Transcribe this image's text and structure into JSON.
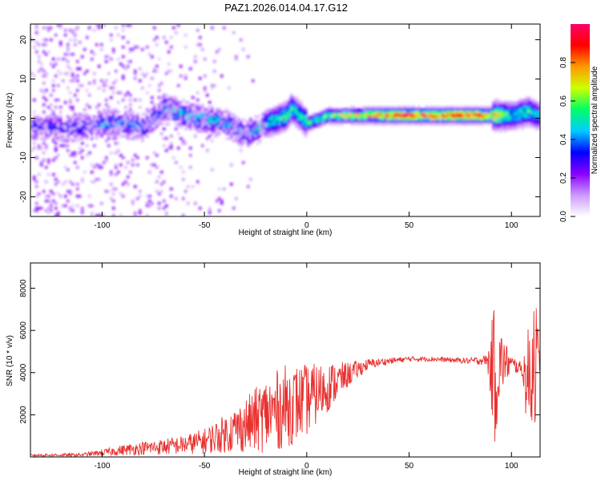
{
  "title": "PAZ1.2026.014.04.17.G12",
  "chart_data": [
    {
      "type": "heatmap",
      "xlabel": "Height of straight line (km)",
      "ylabel": "Frequency (Hz)",
      "xlim": [
        -135,
        114
      ],
      "ylim": [
        -25,
        24
      ],
      "xticks": [
        -100,
        -50,
        0,
        50,
        100
      ],
      "yticks": [
        -20,
        -10,
        0,
        10,
        20
      ],
      "colorbar": {
        "label": "Normalized spectral amplitude",
        "range": [
          0,
          1
        ],
        "ticks": [
          "0.0",
          "0.2",
          "0.4",
          "0.6",
          "0.8"
        ],
        "colors": [
          "#ffffff",
          "#cc99ff",
          "#8800ff",
          "#0000ff",
          "#00ccff",
          "#00ff66",
          "#ccff00",
          "#ff9900",
          "#ff0000",
          "#ff0066"
        ]
      },
      "ridge": [
        {
          "x": -110,
          "y": -2,
          "a": 0.3
        },
        {
          "x": -100,
          "y": -1,
          "a": 0.4
        },
        {
          "x": -90,
          "y": -1,
          "a": 0.4
        },
        {
          "x": -80,
          "y": -2,
          "a": 0.35
        },
        {
          "x": -70,
          "y": 3,
          "a": 0.45
        },
        {
          "x": -60,
          "y": 1,
          "a": 0.45
        },
        {
          "x": -50,
          "y": 0,
          "a": 0.45
        },
        {
          "x": -40,
          "y": -1,
          "a": 0.4
        },
        {
          "x": -30,
          "y": -4,
          "a": 0.4
        },
        {
          "x": -20,
          "y": -1,
          "a": 0.45
        },
        {
          "x": -10,
          "y": 1,
          "a": 0.55
        },
        {
          "x": -8,
          "y": 3,
          "a": 0.5
        },
        {
          "x": 0,
          "y": -1,
          "a": 0.5
        },
        {
          "x": 10,
          "y": 1,
          "a": 0.6
        },
        {
          "x": 20,
          "y": 1,
          "a": 0.65
        },
        {
          "x": 30,
          "y": 1,
          "a": 0.75
        },
        {
          "x": 40,
          "y": 1,
          "a": 0.8
        },
        {
          "x": 50,
          "y": 1,
          "a": 0.85
        },
        {
          "x": 60,
          "y": 1,
          "a": 0.85
        },
        {
          "x": 70,
          "y": 1,
          "a": 0.85
        },
        {
          "x": 80,
          "y": 1,
          "a": 0.9
        },
        {
          "x": 90,
          "y": 1,
          "a": 0.7
        },
        {
          "x": 100,
          "y": 1,
          "a": 0.45
        },
        {
          "x": 108,
          "y": 2,
          "a": 0.5
        },
        {
          "x": 113,
          "y": 1,
          "a": 0.4
        }
      ]
    },
    {
      "type": "line",
      "xlabel": "Height of straight line (km)",
      "ylabel": "SNR (10 * v/v)",
      "xlim": [
        -135,
        114
      ],
      "ylim": [
        0,
        9200
      ],
      "xticks": [
        -100,
        -50,
        0,
        50,
        100
      ],
      "yticks": [
        2000,
        4000,
        6000,
        8000
      ],
      "color": "#e8312f",
      "envelope": [
        {
          "x": -135,
          "mean": 80,
          "amp": 60
        },
        {
          "x": -110,
          "mean": 100,
          "amp": 80
        },
        {
          "x": -100,
          "mean": 200,
          "amp": 150
        },
        {
          "x": -90,
          "mean": 320,
          "amp": 250
        },
        {
          "x": -80,
          "mean": 420,
          "amp": 320
        },
        {
          "x": -70,
          "mean": 480,
          "amp": 380
        },
        {
          "x": -60,
          "mean": 580,
          "amp": 450
        },
        {
          "x": -50,
          "mean": 750,
          "amp": 600
        },
        {
          "x": -40,
          "mean": 1100,
          "amp": 900
        },
        {
          "x": -30,
          "mean": 1500,
          "amp": 1300
        },
        {
          "x": -20,
          "mean": 2000,
          "amp": 1800
        },
        {
          "x": -10,
          "mean": 2400,
          "amp": 2000
        },
        {
          "x": 0,
          "mean": 2700,
          "amp": 1700
        },
        {
          "x": 10,
          "mean": 3300,
          "amp": 1200
        },
        {
          "x": 20,
          "mean": 3900,
          "amp": 600
        },
        {
          "x": 30,
          "mean": 4400,
          "amp": 250
        },
        {
          "x": 40,
          "mean": 4550,
          "amp": 150
        },
        {
          "x": 50,
          "mean": 4650,
          "amp": 120
        },
        {
          "x": 60,
          "mean": 4650,
          "amp": 120
        },
        {
          "x": 70,
          "mean": 4600,
          "amp": 120
        },
        {
          "x": 80,
          "mean": 4550,
          "amp": 150
        },
        {
          "x": 88,
          "mean": 4600,
          "amp": 250
        },
        {
          "x": 92,
          "mean": 4000,
          "amp": 3500
        },
        {
          "x": 95,
          "mean": 4500,
          "amp": 1500
        },
        {
          "x": 100,
          "mean": 4400,
          "amp": 400
        },
        {
          "x": 105,
          "mean": 4200,
          "amp": 300
        },
        {
          "x": 108,
          "mean": 3500,
          "amp": 2500
        },
        {
          "x": 111,
          "mean": 5000,
          "amp": 4000
        },
        {
          "x": 114,
          "mean": 4400,
          "amp": 200
        }
      ]
    }
  ]
}
